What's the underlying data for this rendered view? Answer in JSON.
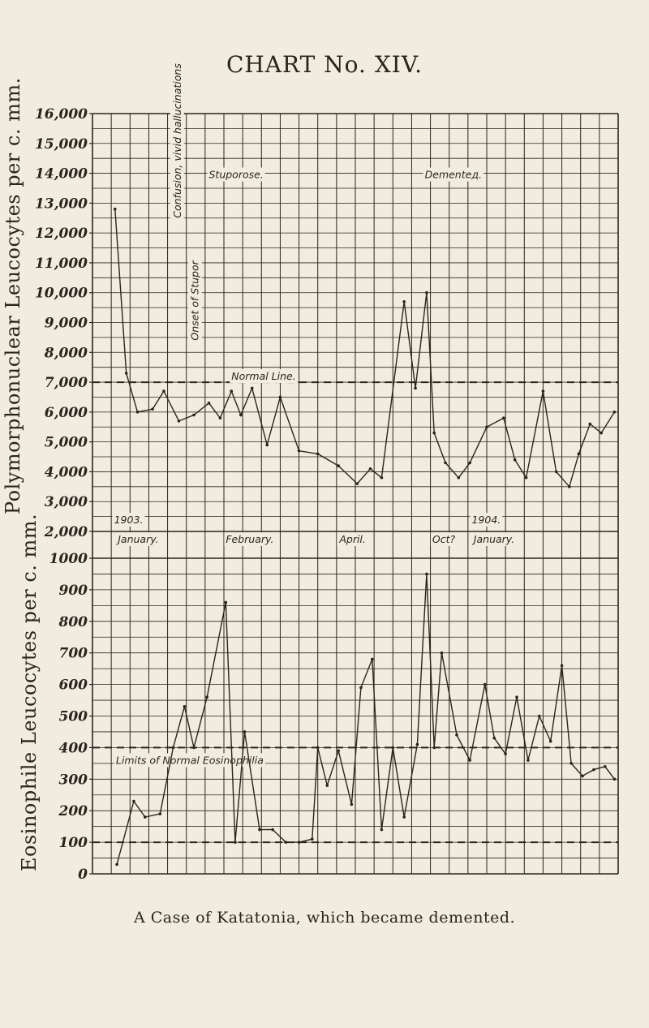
{
  "title": "CHART No. XIV.",
  "caption": "A Case of Katatonia, which became demented.",
  "chart_data": [
    {
      "type": "line",
      "ylabel": "Polymorphonuclear Leucocytes per c. mm.",
      "y_ticks": [
        "16,000",
        "15,000",
        "14,000",
        "13,000",
        "12,000",
        "11,000",
        "10,000",
        "9,000",
        "8,000",
        "7,000",
        "6,000",
        "5,000",
        "4,000",
        "3,000",
        "2,000"
      ],
      "ylim": [
        2000,
        16000
      ],
      "reference_line": {
        "label": "Normal Line.",
        "value": 7000
      },
      "annotations": [
        "Confusion, vivid hallucinations",
        "Onset of Stupor",
        "Stuporose.",
        "Dementeд."
      ],
      "series": [
        {
          "values": [
            [
              1.2,
              12800
            ],
            [
              1.8,
              7300
            ],
            [
              2.4,
              6000
            ],
            [
              3.2,
              6100
            ],
            [
              3.8,
              6700
            ],
            [
              4.6,
              5700
            ],
            [
              5.4,
              5900
            ],
            [
              6.2,
              6300
            ],
            [
              6.8,
              5800
            ],
            [
              7.4,
              6700
            ],
            [
              7.9,
              5900
            ],
            [
              8.5,
              6800
            ],
            [
              9.3,
              4900
            ],
            [
              10.0,
              6500
            ],
            [
              11.0,
              4700
            ],
            [
              12.0,
              4600
            ],
            [
              13.1,
              4200
            ],
            [
              14.1,
              3600
            ],
            [
              14.8,
              4100
            ],
            [
              15.4,
              3800
            ],
            [
              16.6,
              9700
            ],
            [
              17.2,
              6800
            ],
            [
              17.8,
              10000
            ],
            [
              18.2,
              5300
            ],
            [
              18.8,
              4300
            ],
            [
              19.5,
              3800
            ],
            [
              20.1,
              4300
            ],
            [
              21.0,
              5500
            ],
            [
              21.9,
              5800
            ],
            [
              22.5,
              4400
            ],
            [
              23.1,
              3800
            ],
            [
              24.0,
              6700
            ],
            [
              24.7,
              4000
            ],
            [
              25.4,
              3500
            ],
            [
              25.9,
              4600
            ],
            [
              26.5,
              5600
            ],
            [
              27.1,
              5300
            ],
            [
              27.8,
              6000
            ]
          ]
        }
      ],
      "x_labels": [
        "1903.",
        "January.",
        "February.",
        "April.",
        "Oct?",
        "1904.",
        "January."
      ]
    },
    {
      "type": "line",
      "ylabel": "Eosinophile Leucocytes per c. mm.",
      "y_ticks": [
        "1000",
        "900",
        "800",
        "700",
        "600",
        "500",
        "400",
        "300",
        "200",
        "100",
        "0"
      ],
      "ylim": [
        0,
        1000
      ],
      "reference_lines": [
        {
          "value": 400
        },
        {
          "value": 100
        }
      ],
      "annotations": [
        "Limits of Normal Eosinophilia"
      ],
      "series": [
        {
          "values": [
            [
              1.3,
              30
            ],
            [
              2.2,
              230
            ],
            [
              2.8,
              180
            ],
            [
              3.6,
              190
            ],
            [
              4.3,
              400
            ],
            [
              4.9,
              530
            ],
            [
              5.4,
              400
            ],
            [
              6.1,
              560
            ],
            [
              7.1,
              860
            ],
            [
              7.6,
              100
            ],
            [
              8.1,
              450
            ],
            [
              8.9,
              140
            ],
            [
              9.6,
              140
            ],
            [
              10.3,
              100
            ],
            [
              11.0,
              100
            ],
            [
              11.7,
              110
            ],
            [
              12.0,
              400
            ],
            [
              12.5,
              280
            ],
            [
              13.1,
              390
            ],
            [
              13.8,
              220
            ],
            [
              14.3,
              590
            ],
            [
              14.9,
              680
            ],
            [
              15.4,
              140
            ],
            [
              16.0,
              400
            ],
            [
              16.6,
              180
            ],
            [
              17.3,
              410
            ],
            [
              17.8,
              950
            ],
            [
              18.2,
              400
            ],
            [
              18.6,
              700
            ],
            [
              19.4,
              440
            ],
            [
              20.1,
              360
            ],
            [
              20.9,
              600
            ],
            [
              21.4,
              430
            ],
            [
              22.0,
              380
            ],
            [
              22.6,
              560
            ],
            [
              23.2,
              360
            ],
            [
              23.8,
              500
            ],
            [
              24.4,
              420
            ],
            [
              25.0,
              660
            ],
            [
              25.5,
              350
            ],
            [
              26.1,
              310
            ],
            [
              26.7,
              330
            ],
            [
              27.3,
              340
            ],
            [
              27.8,
              300
            ]
          ]
        }
      ]
    }
  ]
}
